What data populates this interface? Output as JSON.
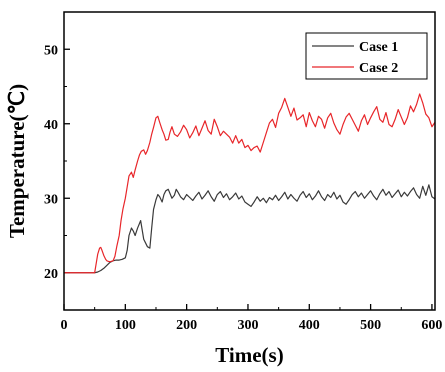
{
  "chart_data": {
    "type": "line",
    "xlabel": "Time(s)",
    "ylabel": "Temperature(℃)",
    "xlim": [
      0,
      605
    ],
    "ylim": [
      15,
      55
    ],
    "xticks": [
      0,
      100,
      200,
      300,
      400,
      500,
      600
    ],
    "yticks": [
      20,
      30,
      40,
      50
    ],
    "grid": false,
    "legend_position": "top-right",
    "series": [
      {
        "name": "Case 1",
        "color": "#3a3a3a",
        "x": [
          0,
          10,
          20,
          30,
          40,
          50,
          55,
          60,
          65,
          70,
          75,
          80,
          85,
          90,
          95,
          100,
          103,
          106,
          110,
          113,
          116,
          120,
          125,
          128,
          130,
          133,
          136,
          140,
          143,
          146,
          150,
          153,
          156,
          160,
          163,
          166,
          170,
          173,
          176,
          180,
          183,
          186,
          190,
          195,
          200,
          205,
          210,
          215,
          220,
          225,
          230,
          235,
          240,
          245,
          250,
          255,
          260,
          265,
          270,
          275,
          280,
          285,
          290,
          295,
          300,
          305,
          310,
          315,
          320,
          325,
          330,
          335,
          340,
          345,
          350,
          355,
          360,
          365,
          370,
          375,
          380,
          385,
          390,
          395,
          400,
          405,
          410,
          415,
          420,
          425,
          430,
          435,
          440,
          445,
          450,
          455,
          460,
          465,
          470,
          475,
          480,
          485,
          490,
          495,
          500,
          505,
          510,
          515,
          520,
          525,
          530,
          535,
          540,
          545,
          550,
          555,
          560,
          565,
          570,
          575,
          580,
          585,
          590,
          595,
          600,
          605
        ],
        "y": [
          20,
          20,
          20,
          20,
          20,
          20,
          20.1,
          20.3,
          20.6,
          21.0,
          21.4,
          21.6,
          21.7,
          21.7,
          21.8,
          22.0,
          23.0,
          25.0,
          26.0,
          25.6,
          25.0,
          26.0,
          27.0,
          25.5,
          24.5,
          24.0,
          23.5,
          23.3,
          26.0,
          28.5,
          29.8,
          30.5,
          30.2,
          29.5,
          30.5,
          31.0,
          31.2,
          30.6,
          30.0,
          30.4,
          31.2,
          30.8,
          30.2,
          29.8,
          30.5,
          30.1,
          29.7,
          30.3,
          30.8,
          29.9,
          30.4,
          31.0,
          30.2,
          29.6,
          30.5,
          30.9,
          30.1,
          30.6,
          29.8,
          30.2,
          30.7,
          29.9,
          30.3,
          29.5,
          29.2,
          28.9,
          29.5,
          30.2,
          29.6,
          30.0,
          29.4,
          30.1,
          29.8,
          30.4,
          29.7,
          30.2,
          30.8,
          29.9,
          30.5,
          30.0,
          29.6,
          30.4,
          30.9,
          30.1,
          30.6,
          29.8,
          30.3,
          31.0,
          30.2,
          29.7,
          30.5,
          30.1,
          30.8,
          29.9,
          30.4,
          29.5,
          29.2,
          29.8,
          30.5,
          30.9,
          30.2,
          30.7,
          30.0,
          30.5,
          31.0,
          30.3,
          29.8,
          30.6,
          31.2,
          30.4,
          30.9,
          30.1,
          30.6,
          31.1,
          30.2,
          30.8,
          30.3,
          30.9,
          31.4,
          30.5,
          30.0,
          31.6,
          30.4,
          31.8,
          30.2,
          29.9
        ]
      },
      {
        "name": "Case 2",
        "color": "#e8262a",
        "x": [
          0,
          10,
          20,
          30,
          40,
          50,
          52,
          55,
          58,
          60,
          62,
          65,
          68,
          70,
          73,
          76,
          80,
          83,
          86,
          90,
          93,
          96,
          100,
          103,
          106,
          110,
          113,
          116,
          120,
          123,
          126,
          130,
          133,
          136,
          140,
          143,
          146,
          150,
          153,
          156,
          160,
          163,
          166,
          170,
          173,
          176,
          180,
          185,
          190,
          195,
          200,
          205,
          210,
          215,
          220,
          225,
          230,
          235,
          240,
          245,
          250,
          255,
          260,
          265,
          270,
          275,
          280,
          285,
          290,
          295,
          300,
          305,
          310,
          315,
          320,
          325,
          330,
          335,
          340,
          345,
          350,
          355,
          360,
          365,
          370,
          375,
          380,
          385,
          390,
          395,
          400,
          405,
          410,
          415,
          420,
          425,
          430,
          435,
          440,
          445,
          450,
          455,
          460,
          465,
          470,
          475,
          480,
          485,
          490,
          495,
          500,
          505,
          510,
          515,
          520,
          525,
          530,
          535,
          540,
          545,
          550,
          555,
          560,
          565,
          570,
          575,
          580,
          585,
          590,
          595,
          600,
          605
        ],
        "y": [
          20,
          20,
          20,
          20,
          20,
          20,
          21.0,
          22.5,
          23.3,
          23.4,
          23.0,
          22.3,
          21.8,
          21.6,
          21.5,
          21.5,
          21.6,
          22.2,
          23.5,
          25.0,
          27.0,
          28.5,
          30.0,
          31.5,
          33.0,
          33.5,
          32.8,
          33.8,
          35.0,
          35.8,
          36.3,
          36.5,
          35.9,
          36.4,
          37.5,
          38.6,
          39.5,
          40.8,
          41.0,
          40.2,
          39.2,
          38.6,
          37.8,
          37.9,
          38.9,
          39.6,
          38.6,
          38.3,
          38.9,
          39.8,
          39.2,
          38.1,
          38.8,
          39.7,
          38.4,
          39.4,
          40.4,
          39.1,
          38.6,
          40.6,
          39.6,
          38.4,
          39.0,
          38.6,
          38.2,
          37.4,
          38.4,
          37.4,
          37.9,
          36.8,
          37.1,
          36.4,
          36.8,
          37.0,
          36.2,
          37.5,
          38.8,
          40.1,
          40.6,
          39.5,
          41.4,
          42.2,
          43.4,
          42.2,
          41.0,
          42.1,
          40.5,
          40.8,
          41.2,
          39.6,
          41.5,
          40.4,
          39.6,
          41.0,
          40.6,
          39.4,
          40.8,
          41.4,
          40.1,
          39.2,
          38.6,
          39.9,
          40.9,
          41.4,
          40.6,
          39.8,
          39.0,
          40.4,
          41.2,
          39.9,
          40.8,
          41.6,
          42.3,
          40.6,
          40.2,
          41.5,
          39.9,
          39.6,
          40.6,
          41.9,
          40.9,
          39.9,
          40.8,
          42.4,
          41.6,
          42.6,
          44.0,
          42.8,
          41.3,
          40.8,
          39.6,
          40.2
        ]
      }
    ]
  }
}
